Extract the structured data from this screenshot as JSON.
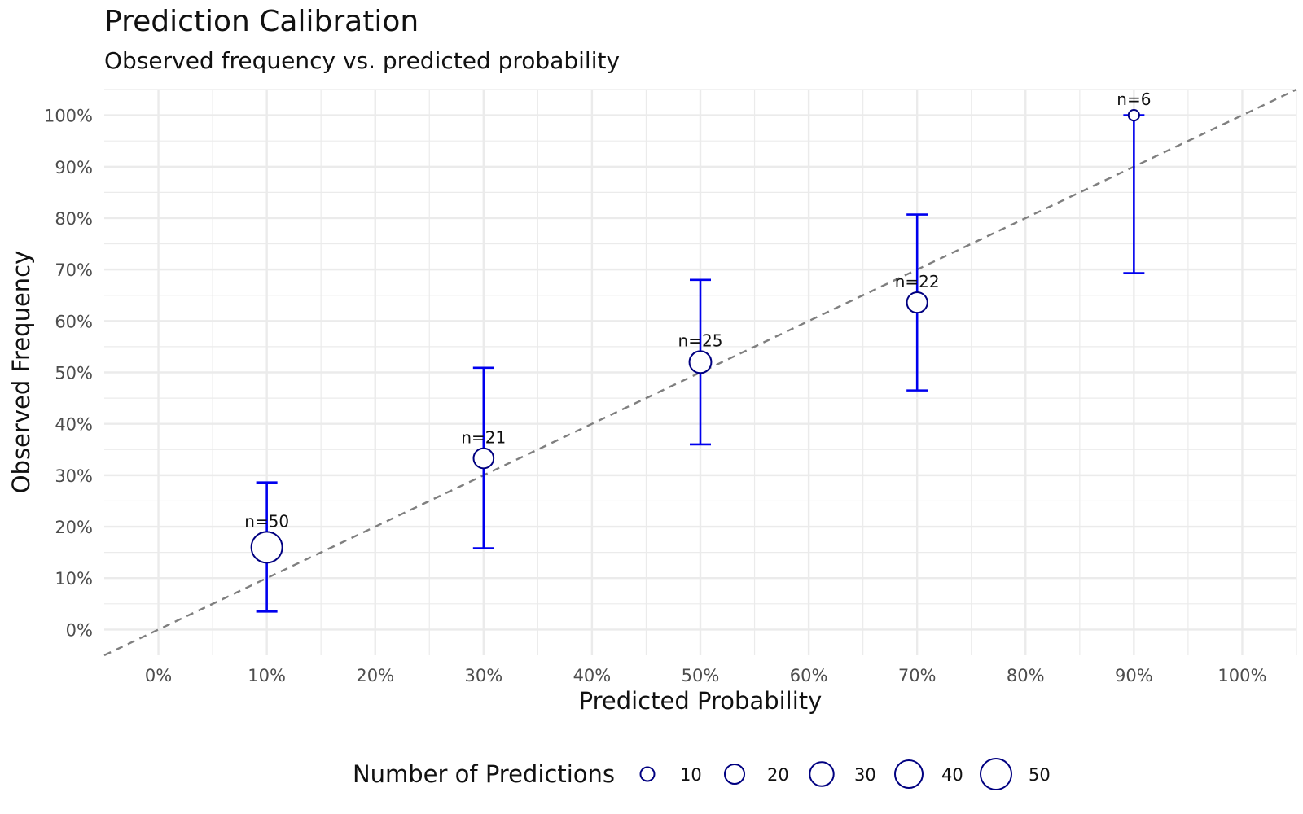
{
  "chart_data": {
    "type": "scatter",
    "title": "Prediction Calibration",
    "subtitle": "Observed frequency vs. predicted probability",
    "xlabel": "Predicted Probability",
    "ylabel": "Observed Frequency",
    "xlim": [
      -0.05,
      1.05
    ],
    "ylim": [
      -0.05,
      1.05
    ],
    "x_ticks": [
      "0%",
      "10%",
      "20%",
      "30%",
      "40%",
      "50%",
      "60%",
      "70%",
      "80%",
      "90%",
      "100%"
    ],
    "y_ticks": [
      "0%",
      "10%",
      "20%",
      "30%",
      "40%",
      "50%",
      "60%",
      "70%",
      "80%",
      "90%",
      "100%"
    ],
    "grid": true,
    "reference_line": {
      "style": "dashed",
      "from": [
        -0.05,
        -0.05
      ],
      "to": [
        1.05,
        1.05
      ]
    },
    "points": [
      {
        "x": 0.1,
        "y": 0.16,
        "lower": 0.035,
        "upper": 0.286,
        "n": 50,
        "label": "n=50"
      },
      {
        "x": 0.3,
        "y": 0.333,
        "lower": 0.158,
        "upper": 0.509,
        "n": 21,
        "label": "n=21"
      },
      {
        "x": 0.5,
        "y": 0.52,
        "lower": 0.36,
        "upper": 0.68,
        "n": 25,
        "label": "n=25"
      },
      {
        "x": 0.7,
        "y": 0.636,
        "lower": 0.465,
        "upper": 0.807,
        "n": 22,
        "label": "n=22"
      },
      {
        "x": 0.9,
        "y": 1.0,
        "lower": 0.693,
        "upper": 1.0,
        "n": 6,
        "label": "n=6"
      }
    ],
    "legend": {
      "title": "Number of Predictions",
      "position": "bottom",
      "items": [
        {
          "value": 10,
          "label": "10"
        },
        {
          "value": 20,
          "label": "20"
        },
        {
          "value": 30,
          "label": "30"
        },
        {
          "value": 40,
          "label": "40"
        },
        {
          "value": 50,
          "label": "50"
        }
      ]
    },
    "colors": {
      "errorbar": "#0000ee",
      "point_stroke": "#000080",
      "point_fill": "#ffffff",
      "reference": "#7f7f7f",
      "grid": "#ebebeb"
    }
  }
}
